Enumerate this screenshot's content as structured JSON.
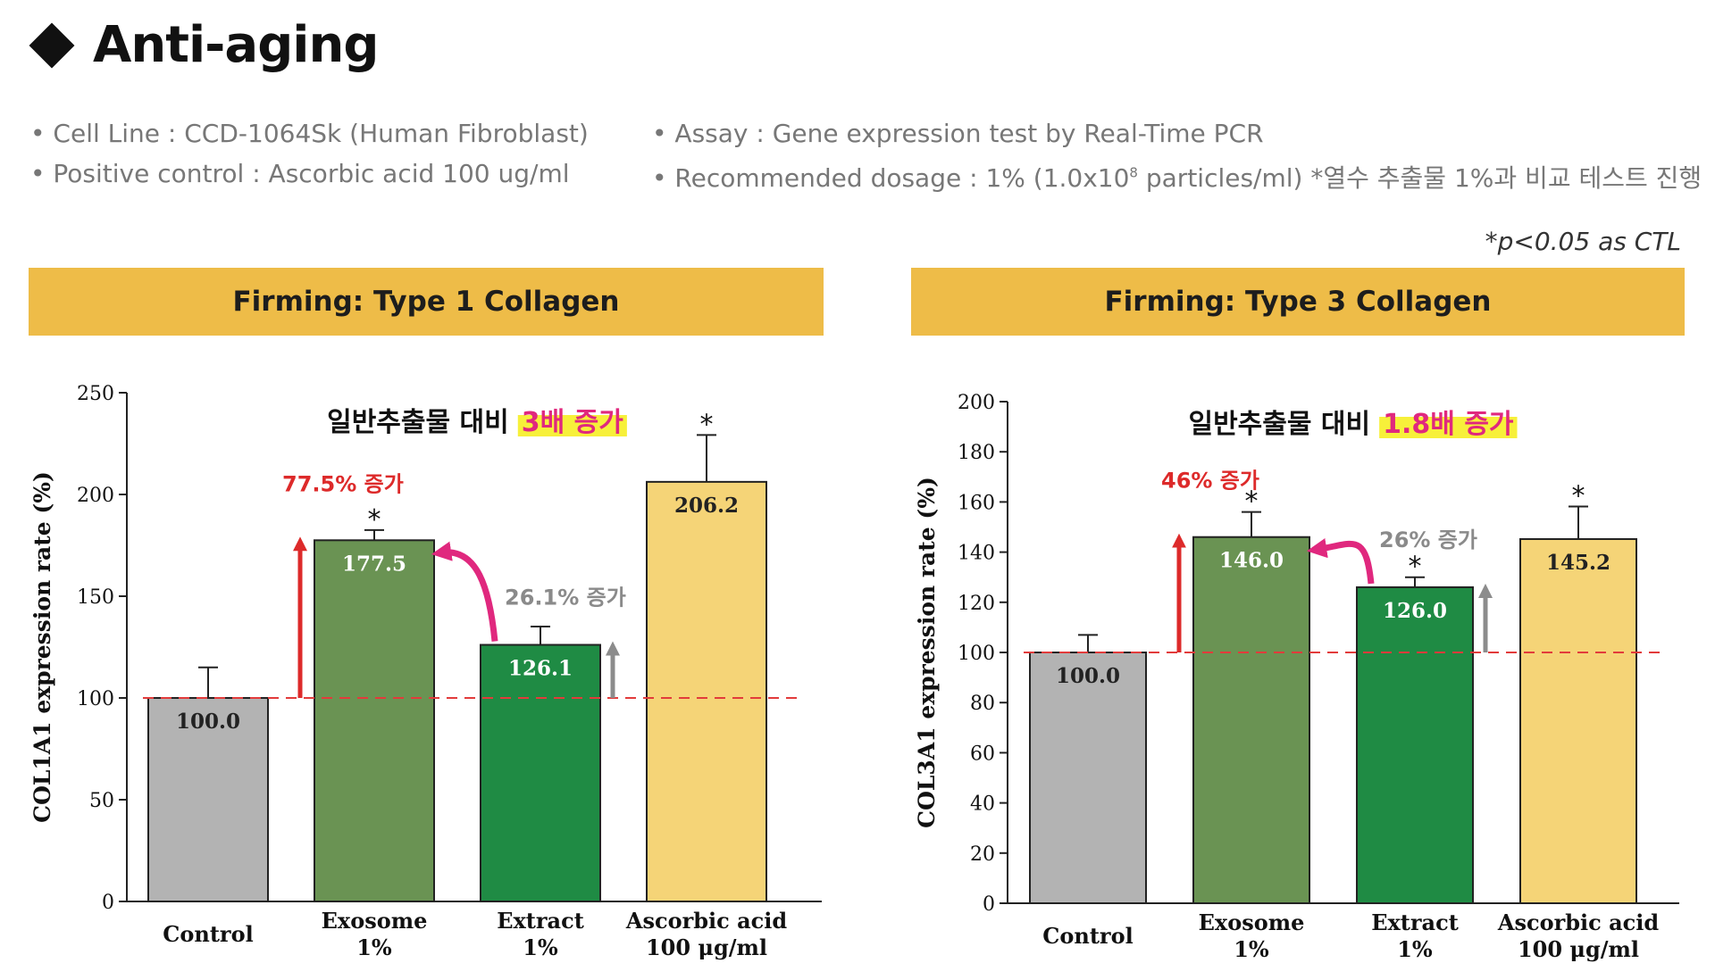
{
  "page": {
    "title": "Anti-aging",
    "info": {
      "cell_line": "• Cell Line : CCD-1064Sk (Human Fibroblast)",
      "positive_control": "• Positive control : Ascorbic acid 100 ug/ml",
      "assay": "• Assay : Gene expression test by Real-Time PCR",
      "dosage_prefix": "• Recommended dosage : 1% (1.0x10",
      "dosage_exp": "8",
      "dosage_suffix": " particles/ml)   *열수 추출물 1%과 비교 테스트 진행"
    },
    "significance_note": "*p<0.05 as CTL"
  },
  "colors": {
    "header_bg": "#eebc48",
    "control": "#b3b3b3",
    "exosome": "#6a9353",
    "extract": "#1f8b44",
    "ascorbic": "#f5d477",
    "red_arrow": "#dd2a2a",
    "magenta": "#e0287e",
    "gray_arrow": "#8c8c8c",
    "highlight": "#f7f03a",
    "baseline": "#e23b3b"
  },
  "chart_data": [
    {
      "type": "bar",
      "title": "Firming: Type 1 Collagen",
      "ylabel": "COL1A1 expression rate (%)",
      "ylim": [
        0,
        250
      ],
      "yticks": [
        "0",
        "50",
        "100",
        "150",
        "200",
        "250"
      ],
      "categories": [
        {
          "line1": "Control",
          "line2": ""
        },
        {
          "line1": "Exosome",
          "line2": "1%"
        },
        {
          "line1": "Extract",
          "line2": "1%"
        },
        {
          "line1": "Ascorbic acid",
          "line2": "100 μg/ml"
        }
      ],
      "values": [
        100.0,
        177.5,
        126.1,
        206.2
      ],
      "value_labels": [
        "100.0",
        "177.5",
        "126.1",
        "206.2"
      ],
      "error": [
        15,
        5,
        9,
        23
      ],
      "significant": [
        "",
        "*",
        "",
        "*"
      ],
      "baseline": 100,
      "headline_main": "일반추출물 대비",
      "headline_highlight": "3배 증가",
      "annotation_exosome": "77.5% 증가",
      "annotation_extract": "26.1% 증가"
    },
    {
      "type": "bar",
      "title": "Firming: Type 3 Collagen",
      "ylabel": "COL3A1 expression rate (%)",
      "ylim": [
        0,
        200
      ],
      "yticks": [
        "0",
        "20",
        "40",
        "60",
        "80",
        "100",
        "120",
        "140",
        "160",
        "180",
        "200"
      ],
      "categories": [
        {
          "line1": "Control",
          "line2": ""
        },
        {
          "line1": "Exosome",
          "line2": "1%"
        },
        {
          "line1": "Extract",
          "line2": "1%"
        },
        {
          "line1": "Ascorbic acid",
          "line2": "100 μg/ml"
        }
      ],
      "values": [
        100.0,
        146.0,
        126.0,
        145.2
      ],
      "value_labels": [
        "100.0",
        "146.0",
        "126.0",
        "145.2"
      ],
      "error": [
        7,
        10,
        4,
        13
      ],
      "significant": [
        "",
        "*",
        "*",
        "*"
      ],
      "baseline": 100,
      "headline_main": "일반추출물 대비",
      "headline_highlight": "1.8배 증가",
      "annotation_exosome": "46% 증가",
      "annotation_extract": "26% 증가"
    }
  ]
}
